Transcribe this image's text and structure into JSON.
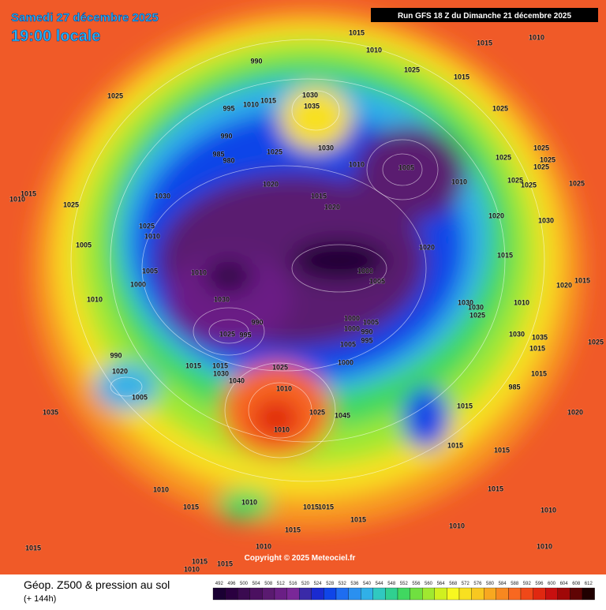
{
  "header": {
    "date": "Samedi 27 décembre 2025",
    "time": "19:00 locale",
    "run": "Run GFS 18 Z du Dimanche 21 décembre 2025"
  },
  "copyright": "Copyright © 2025 Meteociel.fr",
  "footer": {
    "title": "Géop. Z500 & pression au sol",
    "lead": "(+ 144h)"
  },
  "isobar_labels": [
    1015,
    1010,
    1010,
    1015,
    990,
    1025,
    1015,
    1025,
    1030,
    1035,
    1015,
    1010,
    995,
    1025,
    990,
    985,
    980,
    1025,
    1030,
    1010,
    1005,
    1025,
    1025,
    1025,
    1025,
    1025,
    1025,
    1025,
    1010,
    1010,
    1015,
    1025,
    1030,
    1020,
    1015,
    1020,
    1020,
    1030,
    1025,
    1010,
    1005,
    1020,
    1015,
    1010,
    1005,
    1000,
    1000,
    1005,
    1015,
    1020,
    1010,
    1030,
    1030,
    1030,
    1025,
    1010,
    1000,
    1005,
    1000,
    990,
    990,
    995,
    1005,
    995,
    1025,
    1030,
    1035,
    1015,
    1025,
    990,
    1000,
    1015,
    1015,
    1030,
    1025,
    1015,
    1020,
    1040,
    1010,
    985,
    1005,
    1015,
    1020,
    1035,
    1025,
    1045,
    1010,
    1015,
    1015,
    1015,
    1010,
    1010,
    1015,
    1015,
    1015,
    1015,
    1015,
    1010,
    1010,
    1015,
    1010,
    1010,
    1015,
    1015,
    1010
  ],
  "colorbar": {
    "labels": [
      492,
      496,
      500,
      504,
      508,
      512,
      516,
      520,
      524,
      528,
      532,
      536,
      540,
      544,
      548,
      552,
      556,
      560,
      564,
      568,
      572,
      576,
      580,
      584,
      588,
      592,
      596,
      600,
      604,
      608,
      612
    ],
    "colors": [
      "#1a0033",
      "#2a0040",
      "#3a0a50",
      "#4b1060",
      "#5a1a70",
      "#6a1f85",
      "#7a2898",
      "#3a2aa8",
      "#1a2ad0",
      "#0f45e8",
      "#1e6df0",
      "#2a90f0",
      "#30b0e8",
      "#30c8c0",
      "#30d090",
      "#40d860",
      "#70e040",
      "#a0e830",
      "#d0f020",
      "#f8f820",
      "#f8e020",
      "#f8c820",
      "#f8a820",
      "#f88820",
      "#f86820",
      "#f04818",
      "#e02810",
      "#c81010",
      "#a00808",
      "#600404",
      "#200000"
    ]
  }
}
